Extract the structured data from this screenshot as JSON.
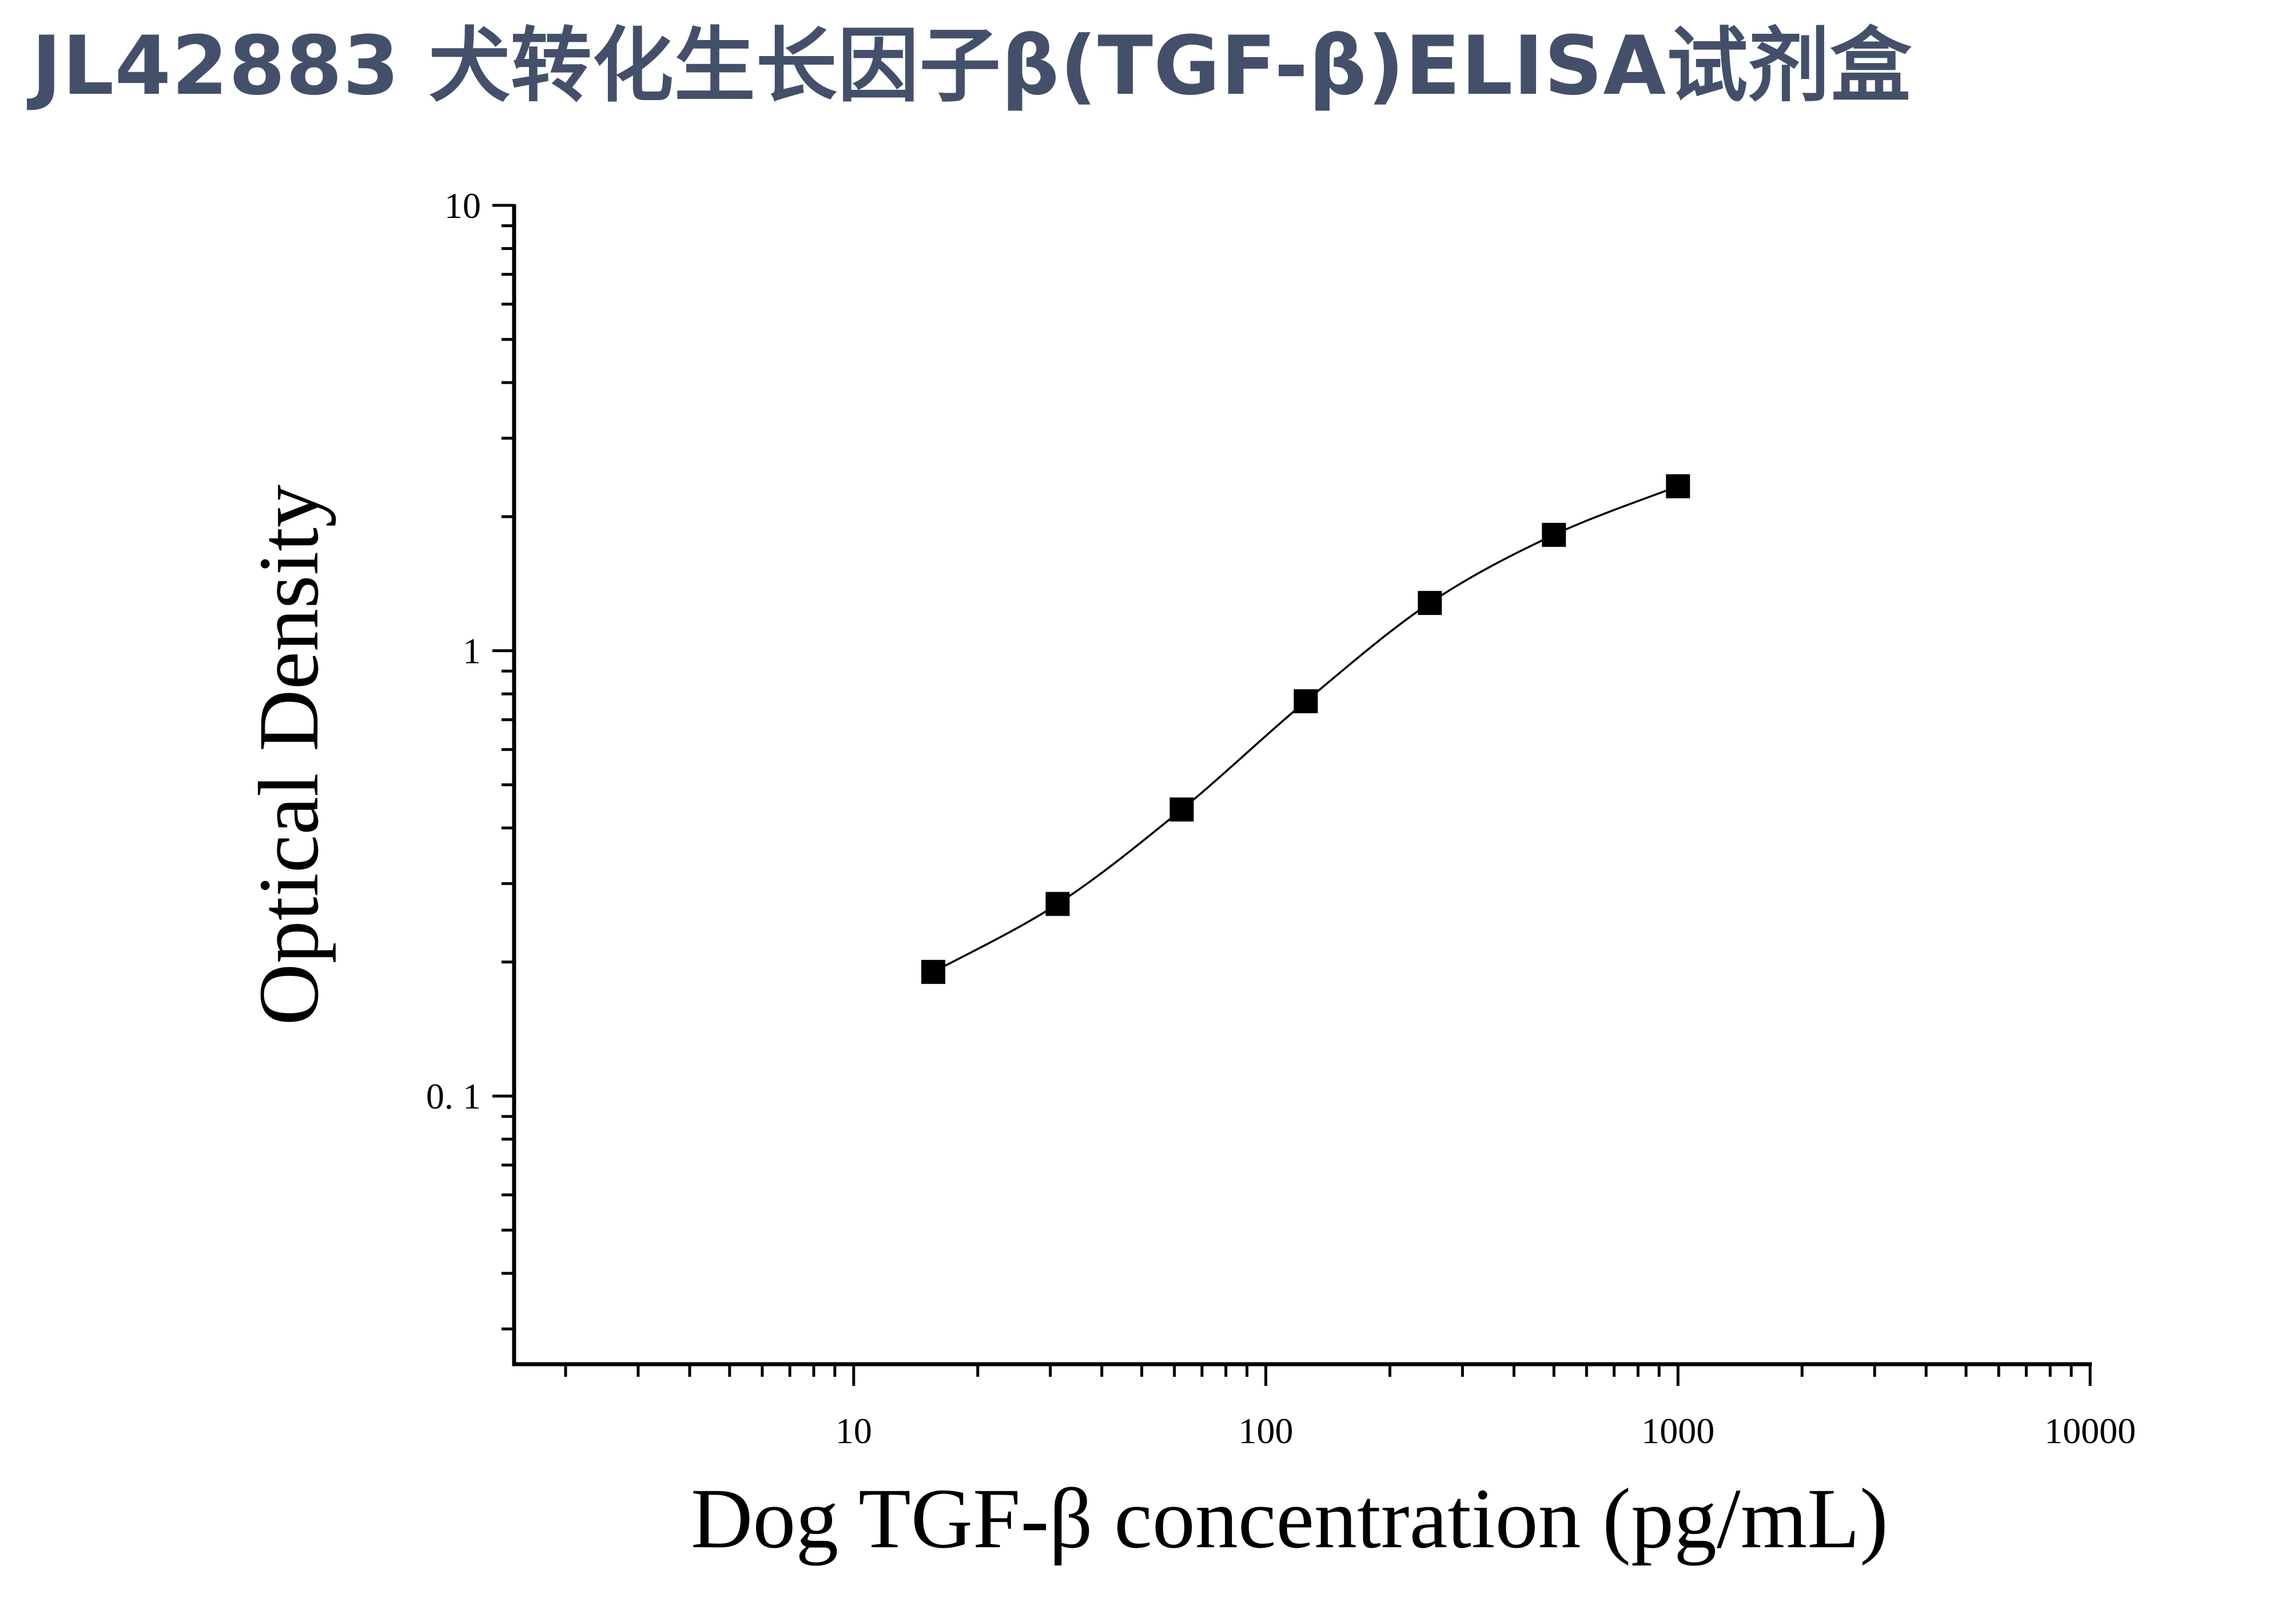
{
  "title": "JL42883 犬转化生长因子β(TGF-β)ELISA试剂盒",
  "chart_data": {
    "type": "scatter",
    "xlabel": "Dog TGF-β concentration (pg/mL)",
    "ylabel": "Optical Density",
    "xscale": "log",
    "yscale": "log",
    "xlim": [
      1.5,
      10000
    ],
    "ylim": [
      0.025,
      10
    ],
    "x_ticks": [
      10,
      100,
      1000,
      10000
    ],
    "x_tick_labels": [
      "10",
      "100",
      "1000",
      "10000"
    ],
    "y_ticks": [
      0.1,
      1,
      10
    ],
    "y_tick_labels": [
      "0. 1",
      "1",
      "10"
    ],
    "grid": false,
    "series": [
      {
        "marker": "square",
        "fit_curve": true,
        "x": [
          15.6,
          31.25,
          62.5,
          125,
          250,
          500,
          1000
        ],
        "y": [
          0.19,
          0.27,
          0.44,
          0.77,
          1.28,
          1.82,
          2.34
        ]
      }
    ],
    "colors": {
      "marks": "#000000"
    }
  }
}
